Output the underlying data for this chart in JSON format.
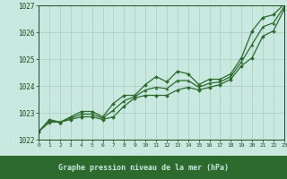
{
  "title": "Graphe pression niveau de la mer (hPa)",
  "hours": [
    0,
    1,
    2,
    3,
    4,
    5,
    6,
    7,
    8,
    9,
    10,
    11,
    12,
    13,
    14,
    15,
    16,
    17,
    18,
    19,
    20,
    21,
    22,
    23
  ],
  "x_labels": [
    "0",
    "1",
    "2",
    "3",
    "4",
    "5",
    "6",
    "7",
    "8",
    "9",
    "10",
    "11",
    "12",
    "13",
    "14",
    "15",
    "16",
    "17",
    "18",
    "19",
    "20",
    "21",
    "22",
    "23"
  ],
  "line_max": [
    1022.3,
    1022.75,
    1022.65,
    1022.85,
    1023.05,
    1023.05,
    1022.85,
    1023.35,
    1023.65,
    1023.65,
    1024.05,
    1024.35,
    1024.15,
    1024.55,
    1024.45,
    1024.05,
    1024.25,
    1024.25,
    1024.45,
    1025.05,
    1026.05,
    1026.55,
    1026.65,
    1027.05
  ],
  "line_min": [
    1022.3,
    1022.65,
    1022.65,
    1022.75,
    1022.85,
    1022.85,
    1022.75,
    1022.85,
    1023.25,
    1023.55,
    1023.65,
    1023.65,
    1023.65,
    1023.85,
    1023.95,
    1023.85,
    1023.95,
    1024.05,
    1024.25,
    1024.75,
    1025.05,
    1025.85,
    1026.05,
    1026.85
  ],
  "line_avg": [
    1022.3,
    1022.7,
    1022.65,
    1022.8,
    1022.95,
    1022.95,
    1022.8,
    1023.1,
    1023.45,
    1023.6,
    1023.85,
    1023.95,
    1023.9,
    1024.2,
    1024.2,
    1023.95,
    1024.1,
    1024.15,
    1024.35,
    1024.9,
    1025.55,
    1026.2,
    1026.35,
    1026.95
  ],
  "ylim": [
    1022,
    1027
  ],
  "yticks": [
    1022,
    1023,
    1024,
    1025,
    1026,
    1027
  ],
  "line_color": "#2d6a2d",
  "bg_color": "#c8e8e0",
  "grid_color": "#a8ccc4",
  "label_color": "#1a4a1a",
  "title_bg": "#2d6a2d",
  "title_fg": "#c8e8e0"
}
